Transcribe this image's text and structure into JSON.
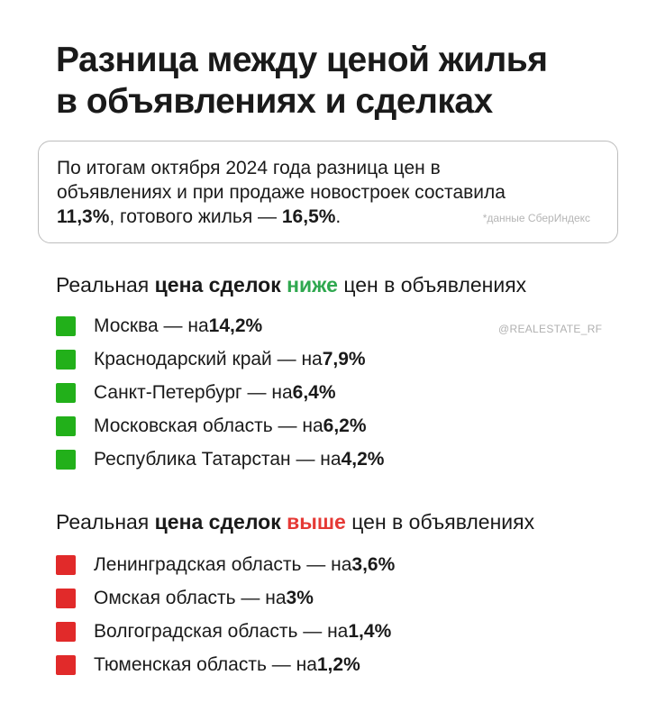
{
  "title": {
    "line1": "Разница между ценой жилья",
    "line2": "в объявлениях и сделках"
  },
  "summary": {
    "line1": "По итогам октября 2024 года разница цен в",
    "line2": "объявлениях и при продаже новостроек составила",
    "new_value": "11,3%",
    "line3_mid": ", готового жилья — ",
    "ready_value": "16,5%",
    "line3_end": ".",
    "source": "*данные СберИндекс"
  },
  "watermark": "@REALESTATE_RF",
  "colors": {
    "green": "#22b01a",
    "red": "#e12a2a"
  },
  "lower": {
    "heading_start": "Реальная ",
    "heading_bold": "цена сделок",
    "heading_space": " ",
    "heading_keyword": "ниже",
    "heading_end": " цен в объявлениях",
    "items": [
      {
        "region": "Москва — на ",
        "value": "14,2%"
      },
      {
        "region": "Краснодарский край — на ",
        "value": "7,9%"
      },
      {
        "region": "Санкт-Петербург — на ",
        "value": "6,4%"
      },
      {
        "region": "Московская область — на ",
        "value": "6,2%"
      },
      {
        "region": "Республика Татарстан — на ",
        "value": "4,2%"
      }
    ]
  },
  "higher": {
    "heading_start": "Реальная ",
    "heading_bold": "цена сделок",
    "heading_space": " ",
    "heading_keyword": "выше",
    "heading_end": " цен в объявлениях",
    "items": [
      {
        "region": "Ленинградская область — на ",
        "value": "3,6%"
      },
      {
        "region": "Омская область — на ",
        "value": "3%"
      },
      {
        "region": "Волгоградская область — на ",
        "value": "1,4%"
      },
      {
        "region": "Тюменская область — на ",
        "value": "1,2%"
      }
    ]
  }
}
